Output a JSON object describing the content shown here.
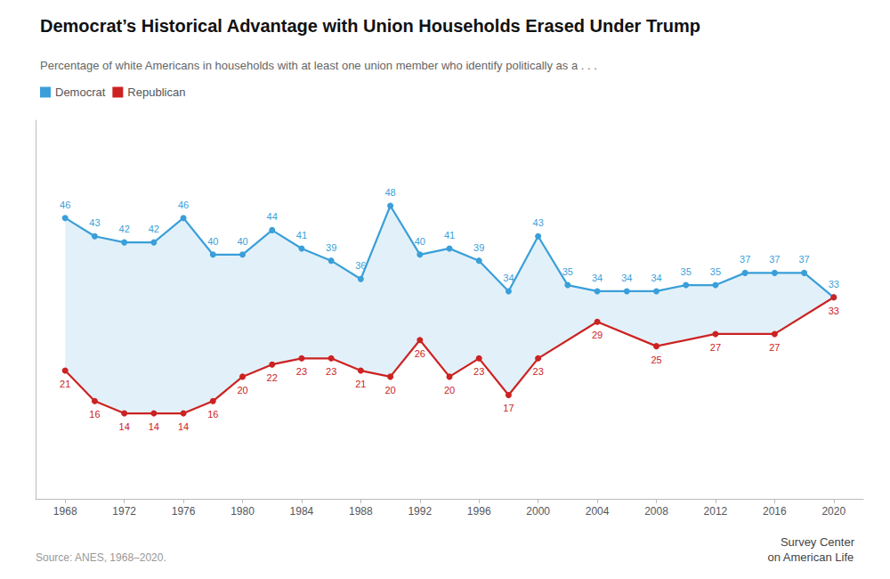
{
  "chart_data": {
    "type": "line",
    "title": "Democrat’s Historical Advantage with Union Households Erased Under Trump",
    "subtitle": "Percentage of white Americans in households with at least one union member who identify politically as a . . .",
    "annotations": [
      "Source: ANES, 1968–2020.",
      "Survey Center",
      "on American Life"
    ],
    "series": [
      {
        "name": "Democrat",
        "color": "#3a9fd9",
        "x": [
          1968,
          1970,
          1972,
          1974,
          1976,
          1978,
          1980,
          1982,
          1984,
          1986,
          1988,
          1990,
          1992,
          1994,
          1996,
          1998,
          2000,
          2002,
          2004,
          2006,
          2008,
          2010,
          2012,
          2014,
          2016,
          2018,
          2020
        ],
        "values": [
          46,
          43,
          42,
          42,
          46,
          40,
          40,
          44,
          41,
          39,
          36,
          48,
          40,
          41,
          39,
          34,
          43,
          35,
          34,
          34,
          34,
          35,
          35,
          37,
          37,
          37,
          33
        ]
      },
      {
        "name": "Republican",
        "color": "#cc2222",
        "x": [
          1968,
          1970,
          1972,
          1974,
          1976,
          1978,
          1980,
          1982,
          1984,
          1986,
          1988,
          1990,
          1992,
          1994,
          1996,
          1998,
          2000,
          2004,
          2008,
          2012,
          2016,
          2020
        ],
        "values": [
          21,
          16,
          14,
          14,
          14,
          16,
          20,
          22,
          23,
          23,
          21,
          20,
          26,
          20,
          23,
          17,
          23,
          29,
          25,
          27,
          27,
          33
        ]
      }
    ],
    "marker": "circle",
    "data_labels": true,
    "legend": "upper left",
    "grid": false,
    "tick_labels": "x",
    "xlim": [
      1966,
      2022
    ],
    "xticks": [
      1968,
      1972,
      1976,
      1980,
      1984,
      1988,
      1992,
      1996,
      2000,
      2004,
      2008,
      2012,
      2016,
      2020
    ],
    "ylim": [
      0,
      62
    ],
    "yticks": []
  }
}
